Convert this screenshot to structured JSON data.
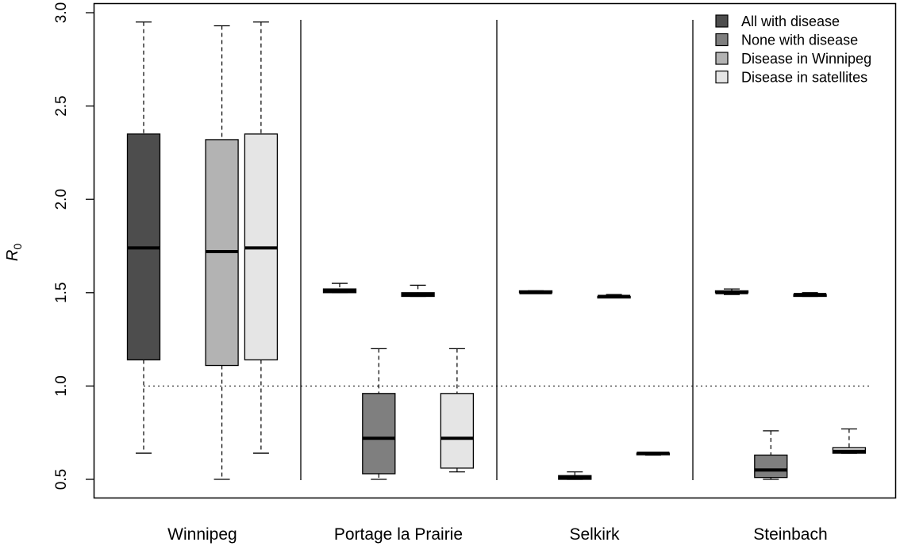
{
  "chart_data": {
    "type": "box",
    "ylabel": "R",
    "ylabel_subscript": "0",
    "ylim": [
      0.42,
      3.02
    ],
    "yticks": [
      0.5,
      1.0,
      1.5,
      2.0,
      2.5,
      3.0
    ],
    "ytick_labels": [
      "0.5",
      "1.0",
      "1.5",
      "2.0",
      "2.5",
      "3.0"
    ],
    "reference_line": 1.0,
    "categories": [
      "Winnipeg",
      "Portage la Prairie",
      "Selkirk",
      "Steinbach"
    ],
    "legend_position": "top-right",
    "series": [
      {
        "name": "All with disease",
        "color": "#4d4d4d",
        "boxes": [
          {
            "min": 0.64,
            "q1": 1.14,
            "median": 1.74,
            "q3": 2.35,
            "max": 2.95
          },
          {
            "min": 1.5,
            "q1": 1.5,
            "median": 1.51,
            "q3": 1.52,
            "max": 1.55
          },
          {
            "min": 1.5,
            "q1": 1.5,
            "median": 1.5,
            "q3": 1.51,
            "max": 1.51
          },
          {
            "min": 1.49,
            "q1": 1.5,
            "median": 1.5,
            "q3": 1.51,
            "max": 1.52
          }
        ]
      },
      {
        "name": "None with disease",
        "color": "#7f7f7f",
        "boxes": [
          null,
          {
            "min": 0.5,
            "q1": 0.53,
            "median": 0.72,
            "q3": 0.96,
            "max": 1.2
          },
          {
            "min": 0.5,
            "q1": 0.5,
            "median": 0.51,
            "q3": 0.52,
            "max": 0.54
          },
          {
            "min": 0.5,
            "q1": 0.51,
            "median": 0.55,
            "q3": 0.63,
            "max": 0.76
          }
        ]
      },
      {
        "name": "Disease in Winnipeg",
        "color": "#b3b3b3",
        "boxes": [
          {
            "min": 0.5,
            "q1": 1.11,
            "median": 1.72,
            "q3": 2.32,
            "max": 2.93
          },
          {
            "min": 1.48,
            "q1": 1.48,
            "median": 1.49,
            "q3": 1.5,
            "max": 1.54
          },
          {
            "min": 1.48,
            "q1": 1.48,
            "median": 1.48,
            "q3": 1.48,
            "max": 1.49
          },
          {
            "min": 1.48,
            "q1": 1.48,
            "median": 1.49,
            "q3": 1.49,
            "max": 1.5
          }
        ]
      },
      {
        "name": "Disease in satellites",
        "color": "#e5e5e5",
        "boxes": [
          {
            "min": 0.64,
            "q1": 1.14,
            "median": 1.74,
            "q3": 2.35,
            "max": 2.95
          },
          {
            "min": 0.54,
            "q1": 0.56,
            "median": 0.72,
            "q3": 0.96,
            "max": 1.2
          },
          {
            "min": 0.63,
            "q1": 0.64,
            "median": 0.64,
            "q3": 0.64,
            "max": 0.64
          },
          {
            "min": 0.64,
            "q1": 0.64,
            "median": 0.65,
            "q3": 0.67,
            "max": 0.77
          }
        ]
      }
    ]
  }
}
